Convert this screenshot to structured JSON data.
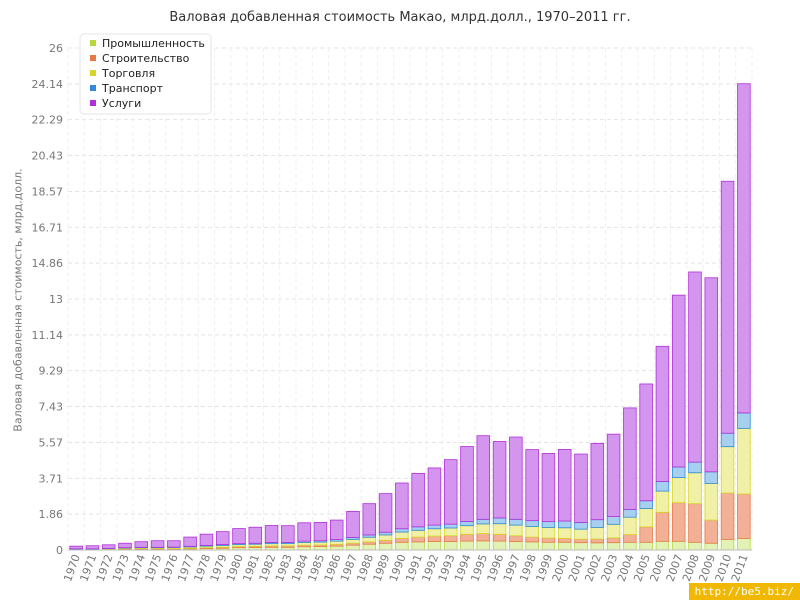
{
  "chart_data": {
    "type": "bar",
    "stacked": true,
    "title": "Валовая добавленная стоимость Макао, млрд.долл., 1970–2011 гг.",
    "xlabel": "",
    "ylabel": "Валовая добавленная стоимость, млрд.долл.",
    "ylim": [
      0,
      26
    ],
    "yticks": [
      "0",
      "1.86",
      "3.71",
      "5.57",
      "7.43",
      "9.29",
      "11.14",
      "13",
      "14.86",
      "16.71",
      "18.57",
      "20.43",
      "22.29",
      "24.14",
      "26"
    ],
    "grid": true,
    "legend_position": "top-left",
    "categories": [
      "1970",
      "1971",
      "1972",
      "1973",
      "1974",
      "1975",
      "1976",
      "1977",
      "1978",
      "1979",
      "1980",
      "1981",
      "1982",
      "1983",
      "1984",
      "1985",
      "1986",
      "1987",
      "1988",
      "1989",
      "1990",
      "1991",
      "1992",
      "1993",
      "1994",
      "1995",
      "1996",
      "1997",
      "1998",
      "1999",
      "2000",
      "2001",
      "2002",
      "2003",
      "2004",
      "2005",
      "2006",
      "2007",
      "2008",
      "2009",
      "2010",
      "2011"
    ],
    "series": [
      {
        "name": "Промышленность",
        "color": "#b6d83c",
        "fill": "#e2f2b4",
        "values": [
          0.02,
          0.02,
          0.03,
          0.04,
          0.05,
          0.05,
          0.05,
          0.06,
          0.08,
          0.09,
          0.12,
          0.13,
          0.14,
          0.14,
          0.17,
          0.18,
          0.2,
          0.25,
          0.3,
          0.35,
          0.4,
          0.42,
          0.44,
          0.44,
          0.46,
          0.47,
          0.46,
          0.44,
          0.42,
          0.4,
          0.4,
          0.38,
          0.37,
          0.38,
          0.4,
          0.4,
          0.45,
          0.45,
          0.4,
          0.35,
          0.55,
          0.6
        ]
      },
      {
        "name": "Строительство",
        "color": "#e87848",
        "fill": "#f2b096",
        "values": [
          0.01,
          0.01,
          0.01,
          0.02,
          0.02,
          0.02,
          0.02,
          0.03,
          0.04,
          0.05,
          0.06,
          0.06,
          0.07,
          0.07,
          0.08,
          0.08,
          0.09,
          0.1,
          0.12,
          0.15,
          0.2,
          0.25,
          0.28,
          0.3,
          0.35,
          0.38,
          0.35,
          0.3,
          0.25,
          0.22,
          0.2,
          0.18,
          0.2,
          0.25,
          0.4,
          0.8,
          1.5,
          2.0,
          2.0,
          1.2,
          2.4,
          2.3
        ]
      },
      {
        "name": "Торговля",
        "color": "#d6d629",
        "fill": "#f0f0a6",
        "values": [
          0.02,
          0.02,
          0.03,
          0.04,
          0.05,
          0.05,
          0.06,
          0.07,
          0.08,
          0.09,
          0.1,
          0.11,
          0.12,
          0.12,
          0.14,
          0.15,
          0.17,
          0.2,
          0.24,
          0.28,
          0.33,
          0.35,
          0.38,
          0.4,
          0.45,
          0.5,
          0.55,
          0.55,
          0.55,
          0.55,
          0.55,
          0.52,
          0.6,
          0.7,
          0.9,
          0.95,
          1.1,
          1.3,
          1.6,
          1.9,
          2.4,
          3.4
        ]
      },
      {
        "name": "Транспорт",
        "color": "#2e8cd8",
        "fill": "#a6cff0",
        "values": [
          0.01,
          0.01,
          0.01,
          0.02,
          0.02,
          0.02,
          0.02,
          0.03,
          0.04,
          0.05,
          0.05,
          0.05,
          0.06,
          0.06,
          0.07,
          0.07,
          0.08,
          0.1,
          0.12,
          0.14,
          0.17,
          0.18,
          0.19,
          0.2,
          0.22,
          0.24,
          0.3,
          0.3,
          0.3,
          0.3,
          0.35,
          0.35,
          0.4,
          0.4,
          0.4,
          0.4,
          0.5,
          0.55,
          0.55,
          0.6,
          0.7,
          0.8
        ]
      },
      {
        "name": "Услуги",
        "color": "#b030d8",
        "fill": "#d495ee",
        "values": [
          0.14,
          0.16,
          0.19,
          0.23,
          0.29,
          0.34,
          0.33,
          0.48,
          0.58,
          0.67,
          0.78,
          0.83,
          0.88,
          0.87,
          0.95,
          0.95,
          1.01,
          1.35,
          1.62,
          2.0,
          2.37,
          2.77,
          2.96,
          3.34,
          3.88,
          4.33,
          3.96,
          4.26,
          3.68,
          3.53,
          3.71,
          3.54,
          3.95,
          4.27,
          5.26,
          6.05,
          7.0,
          8.9,
          9.85,
          10.05,
          13.05,
          17.05
        ]
      }
    ]
  },
  "watermark": "http://be5.biz/"
}
